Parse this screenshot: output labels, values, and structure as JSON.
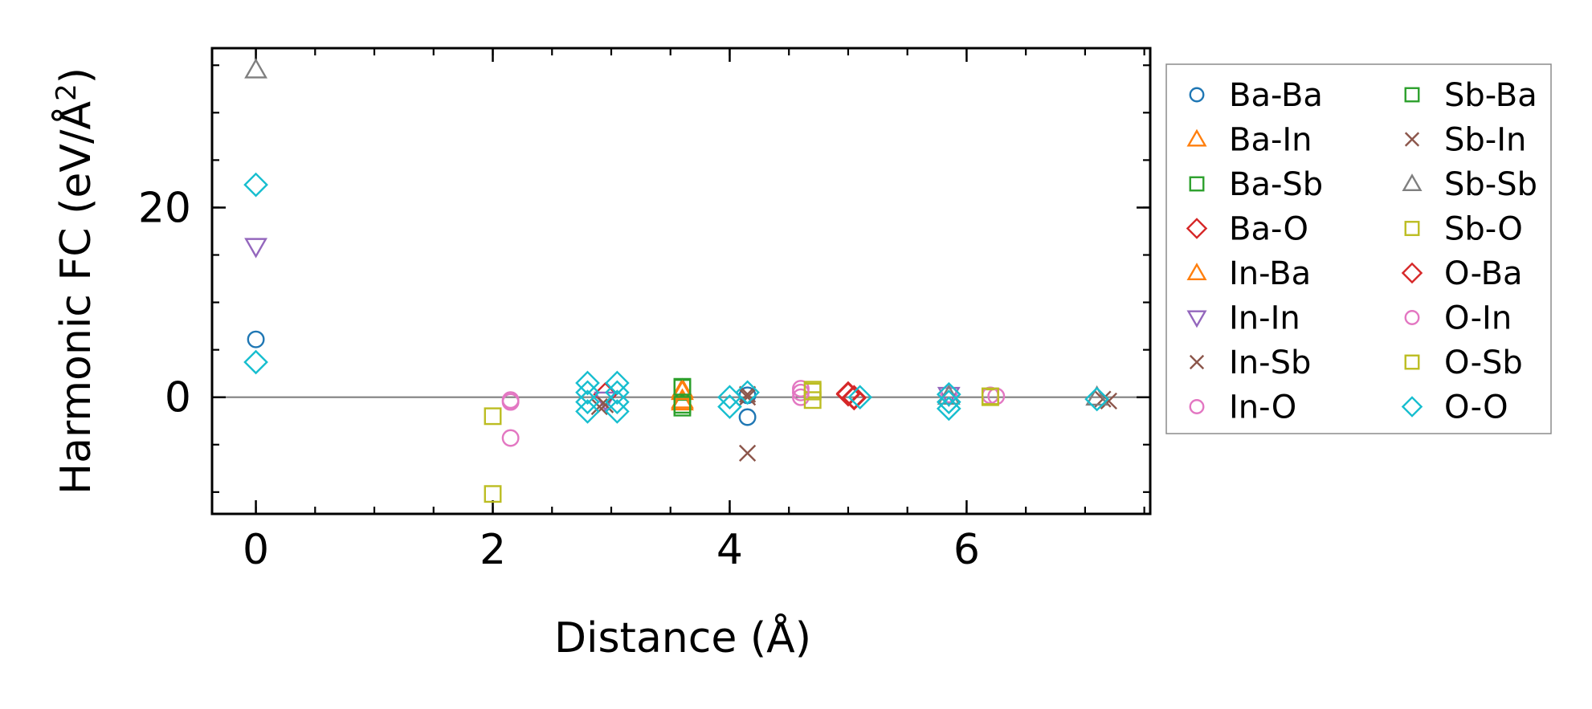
{
  "chart_data": {
    "type": "scatter",
    "xlabel": "Distance (Å)",
    "ylabel_main": "Harmonic FC (eV/Å",
    "ylabel_sup": "2",
    "ylabel_close": ")",
    "xlim": [
      -0.37,
      7.55
    ],
    "ylim": [
      -12.3,
      36.8
    ],
    "xticks": [
      0,
      2,
      4,
      6
    ],
    "yticks": [
      0,
      20
    ],
    "xtick_labels": [
      "0",
      "2",
      "4",
      "6"
    ],
    "ytick_labels": [
      "0",
      "20"
    ],
    "x_minor_step": 0.5,
    "y_minor_step": 5,
    "zero_line": true,
    "grid": false,
    "legend": {
      "placement": "outside-right",
      "columns": 2
    },
    "series": [
      {
        "name": "Ba-Ba",
        "marker": "circle",
        "color": "#1f77b4",
        "points": [
          [
            0,
            6.1
          ],
          [
            4.15,
            -2.1
          ],
          [
            4.15,
            0.2
          ]
        ]
      },
      {
        "name": "Ba-In",
        "marker": "triangle-up",
        "color": "#ff7f0e",
        "points": [
          [
            3.6,
            0.8
          ],
          [
            3.6,
            -0.5
          ]
        ]
      },
      {
        "name": "Ba-Sb",
        "marker": "square",
        "color": "#2ca02c",
        "points": [
          [
            3.6,
            1.0
          ],
          [
            3.6,
            -1.1
          ]
        ]
      },
      {
        "name": "Ba-O",
        "marker": "diamond",
        "color": "#d62728",
        "points": [
          [
            2.95,
            0.3
          ],
          [
            5.0,
            0.4
          ],
          [
            5.05,
            0.0
          ]
        ]
      },
      {
        "name": "In-Ba",
        "marker": "triangle-up",
        "color": "#ff7f0e",
        "points": [
          [
            3.6,
            0.6
          ],
          [
            3.6,
            -0.3
          ]
        ]
      },
      {
        "name": "In-In",
        "marker": "triangle-down",
        "color": "#9467bd",
        "points": [
          [
            0,
            15.9
          ],
          [
            2.95,
            -0.3
          ],
          [
            5.85,
            0.2
          ]
        ]
      },
      {
        "name": "In-Sb",
        "marker": "x",
        "color": "#8c564b",
        "points": [
          [
            4.15,
            -5.9
          ],
          [
            2.95,
            -0.8
          ],
          [
            4.15,
            0.3
          ],
          [
            7.2,
            -0.4
          ]
        ]
      },
      {
        "name": "In-O",
        "marker": "circle",
        "color": "#e377c2",
        "points": [
          [
            2.15,
            -0.5
          ],
          [
            2.15,
            -4.3
          ],
          [
            4.6,
            0.9
          ],
          [
            4.6,
            0.0
          ],
          [
            6.25,
            0.1
          ],
          [
            5.85,
            0.3
          ]
        ]
      },
      {
        "name": "Sb-Ba",
        "marker": "square",
        "color": "#2ca02c",
        "points": [
          [
            3.6,
            1.1
          ],
          [
            3.6,
            -0.8
          ]
        ]
      },
      {
        "name": "Sb-In",
        "marker": "x",
        "color": "#8c564b",
        "points": [
          [
            2.9,
            -1.0
          ],
          [
            4.15,
            0.0
          ],
          [
            7.15,
            -0.2
          ]
        ]
      },
      {
        "name": "Sb-Sb",
        "marker": "triangle-up",
        "color": "#7f7f7f",
        "points": [
          [
            0,
            34.5
          ],
          [
            5.85,
            0.1
          ],
          [
            7.1,
            0.0
          ]
        ]
      },
      {
        "name": "Sb-O",
        "marker": "square",
        "color": "#bcbd22",
        "points": [
          [
            2.0,
            -2.0
          ],
          [
            2.0,
            -10.2
          ],
          [
            4.7,
            0.8
          ],
          [
            4.7,
            -0.3
          ],
          [
            6.2,
            0.0
          ]
        ]
      },
      {
        "name": "O-Ba",
        "marker": "diamond",
        "color": "#d62728",
        "points": [
          [
            5.0,
            0.3
          ],
          [
            5.05,
            -0.1
          ]
        ]
      },
      {
        "name": "O-In",
        "marker": "circle",
        "color": "#e377c2",
        "points": [
          [
            2.15,
            -0.3
          ],
          [
            4.6,
            0.5
          ],
          [
            6.2,
            0.2
          ]
        ]
      },
      {
        "name": "O-Sb",
        "marker": "square",
        "color": "#bcbd22",
        "points": [
          [
            4.7,
            0.6
          ],
          [
            6.2,
            0.1
          ]
        ]
      },
      {
        "name": "O-O",
        "marker": "diamond",
        "color": "#17becf",
        "points": [
          [
            0,
            22.4
          ],
          [
            0,
            3.7
          ],
          [
            2.8,
            1.5
          ],
          [
            2.8,
            0.5
          ],
          [
            2.8,
            -0.5
          ],
          [
            2.8,
            -1.5
          ],
          [
            3.05,
            1.5
          ],
          [
            3.05,
            0.5
          ],
          [
            3.05,
            -0.5
          ],
          [
            3.05,
            -1.5
          ],
          [
            4.0,
            0.0
          ],
          [
            4.0,
            -1.0
          ],
          [
            4.15,
            0.5
          ],
          [
            5.1,
            0.0
          ],
          [
            5.85,
            0.3
          ],
          [
            5.85,
            -0.5
          ],
          [
            5.85,
            -1.2
          ],
          [
            7.1,
            -0.2
          ]
        ]
      }
    ]
  }
}
